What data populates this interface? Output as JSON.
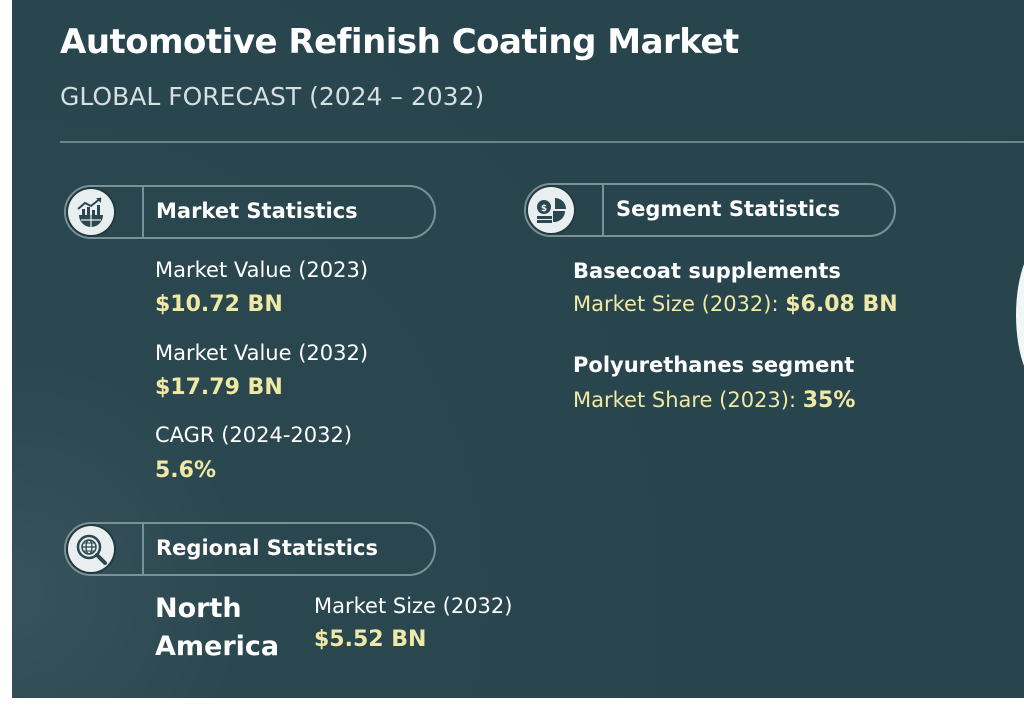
{
  "header": {
    "title": "Automotive Refinish Coating Market",
    "subtitle": "GLOBAL FORECAST (2024 – 2032)"
  },
  "market_statistics": {
    "label": "Market Statistics",
    "icon": "bar-chart-globe-icon",
    "items": [
      {
        "label": "Market Value (2023)",
        "value": "$10.72 BN"
      },
      {
        "label": "Market Value (2032)",
        "value": "$17.79 BN"
      },
      {
        "label": "CAGR (2024-2032)",
        "value": "5.6%"
      }
    ]
  },
  "segment_statistics": {
    "label": "Segment Statistics",
    "icon": "pie-chart-coin-icon",
    "items": [
      {
        "title": "Basecoat supplements",
        "label": "Market Size (2032):",
        "value": "$6.08 BN"
      },
      {
        "title": "Polyurethanes segment",
        "label": "Market Share (2023):",
        "value": "35%"
      }
    ]
  },
  "regional_statistics": {
    "label": "Regional Statistics",
    "icon": "globe-magnifier-icon",
    "region": "North America",
    "label_text": "Market Size (2032)",
    "value": "$5.52 BN"
  },
  "colors": {
    "background": "#29454d",
    "accent": "#f0e9a6",
    "text": "#ffffff"
  }
}
